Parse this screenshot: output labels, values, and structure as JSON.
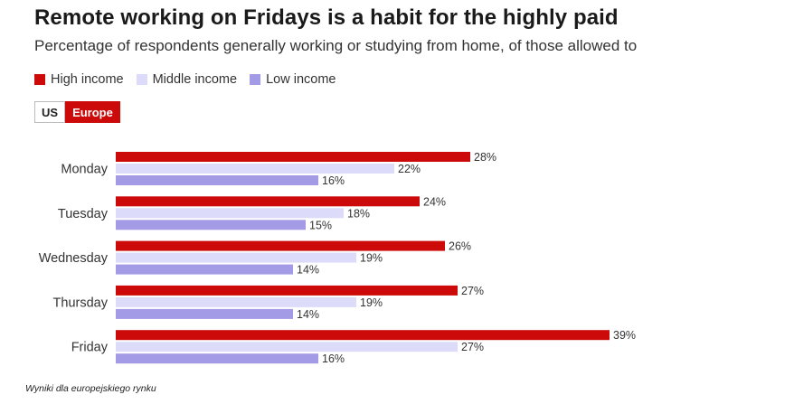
{
  "header": {
    "title": "Remote working on Fridays is a habit for the highly paid",
    "subtitle": "Percentage of respondents generally working or studying from home, of those allowed to"
  },
  "legend": [
    {
      "label": "High income",
      "color": "#cc0a0a"
    },
    {
      "label": "Middle income",
      "color": "#dcdcfa"
    },
    {
      "label": "Low income",
      "color": "#a49be6"
    }
  ],
  "toggle": {
    "us_label": "US",
    "europe_label": "Europe",
    "selected": "Europe"
  },
  "footnote": "Wyniki dla europejskiego rynku",
  "chart_data": {
    "type": "bar",
    "orientation": "horizontal",
    "categories": [
      "Monday",
      "Tuesday",
      "Wednesday",
      "Thursday",
      "Friday"
    ],
    "series": [
      {
        "name": "High income",
        "color": "#cc0a0a",
        "values": [
          28,
          24,
          26,
          27,
          39
        ]
      },
      {
        "name": "Middle income",
        "color": "#dcdcfa",
        "values": [
          22,
          18,
          19,
          19,
          27
        ]
      },
      {
        "name": "Low income",
        "color": "#a49be6",
        "values": [
          16,
          15,
          14,
          14,
          16
        ]
      }
    ],
    "value_suffix": "%",
    "xlim": [
      0,
      40
    ],
    "grid": false,
    "legend_position": "top-left"
  }
}
